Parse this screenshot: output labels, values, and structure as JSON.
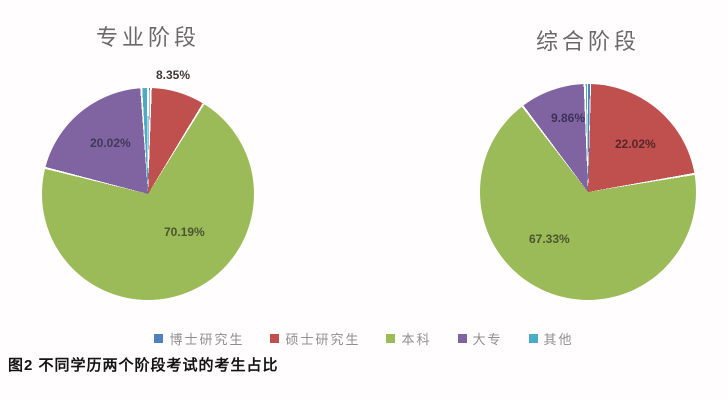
{
  "figure": {
    "caption": "图2  不同学历两个阶段考试的考生占比"
  },
  "legend": {
    "items": [
      {
        "label": "博士研究生",
        "color": "#4f81bd"
      },
      {
        "label": "硕士研究生",
        "color": "#c0504d"
      },
      {
        "label": "本科",
        "color": "#9bbb59"
      },
      {
        "label": "大专",
        "color": "#8064a2"
      },
      {
        "label": "其他",
        "color": "#4bacc6"
      }
    ]
  },
  "chart_data": [
    {
      "type": "pie",
      "title": "专业阶段",
      "labels": [
        "博士研究生",
        "硕士研究生",
        "本科",
        "大专",
        "其他"
      ],
      "values": [
        0.42,
        8.35,
        70.19,
        20.02,
        1.02
      ],
      "display_labels": [
        "",
        "8.35%",
        "70.19%",
        "20.02%",
        ""
      ],
      "colors": [
        "#4f81bd",
        "#c0504d",
        "#9bbb59",
        "#8064a2",
        "#4bacc6"
      ],
      "start_angle_deg": 0,
      "direction": "clockwise",
      "legend_position": "bottom"
    },
    {
      "type": "pie",
      "title": "综合阶段",
      "labels": [
        "博士研究生",
        "硕士研究生",
        "本科",
        "大专",
        "其他"
      ],
      "values": [
        0.3,
        22.02,
        67.33,
        9.86,
        0.49
      ],
      "display_labels": [
        "",
        "22.02%",
        "67.33%",
        "9.86%",
        ""
      ],
      "colors": [
        "#4f81bd",
        "#c0504d",
        "#9bbb59",
        "#8064a2",
        "#4bacc6"
      ],
      "start_angle_deg": 0,
      "direction": "clockwise",
      "legend_position": "bottom"
    }
  ]
}
